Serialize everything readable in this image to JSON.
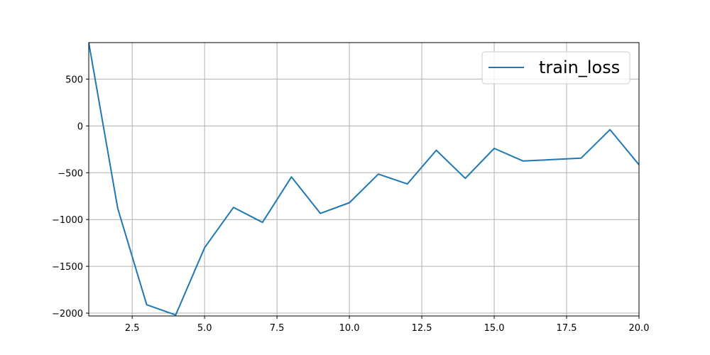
{
  "chart_data": {
    "type": "line",
    "title": "",
    "xlabel": "",
    "ylabel": "",
    "xlim": [
      1,
      20
    ],
    "ylim": [
      -2030,
      890
    ],
    "grid": true,
    "legend_position": "top-right",
    "x_ticks": [
      2.5,
      5.0,
      7.5,
      10.0,
      12.5,
      15.0,
      17.5,
      20.0
    ],
    "x_tick_labels": [
      "2.5",
      "5.0",
      "7.5",
      "10.0",
      "12.5",
      "15.0",
      "17.5",
      "20.0"
    ],
    "y_ticks": [
      500,
      0,
      -500,
      -1000,
      -1500,
      -2000
    ],
    "y_tick_labels": [
      "500",
      "0",
      "−500",
      "−1000",
      "−1500",
      "−2000"
    ],
    "series": [
      {
        "name": "train_loss",
        "color": "#1f77b4",
        "x": [
          1,
          2,
          3,
          4,
          5,
          6,
          7,
          8,
          9,
          10,
          11,
          12,
          13,
          14,
          15,
          16,
          17,
          18,
          19,
          20
        ],
        "y": [
          890,
          -880,
          -1910,
          -2020,
          -1300,
          -870,
          -1030,
          -545,
          -935,
          -820,
          -515,
          -620,
          -260,
          -560,
          -240,
          -375,
          -360,
          -345,
          -40,
          -415
        ]
      }
    ]
  }
}
